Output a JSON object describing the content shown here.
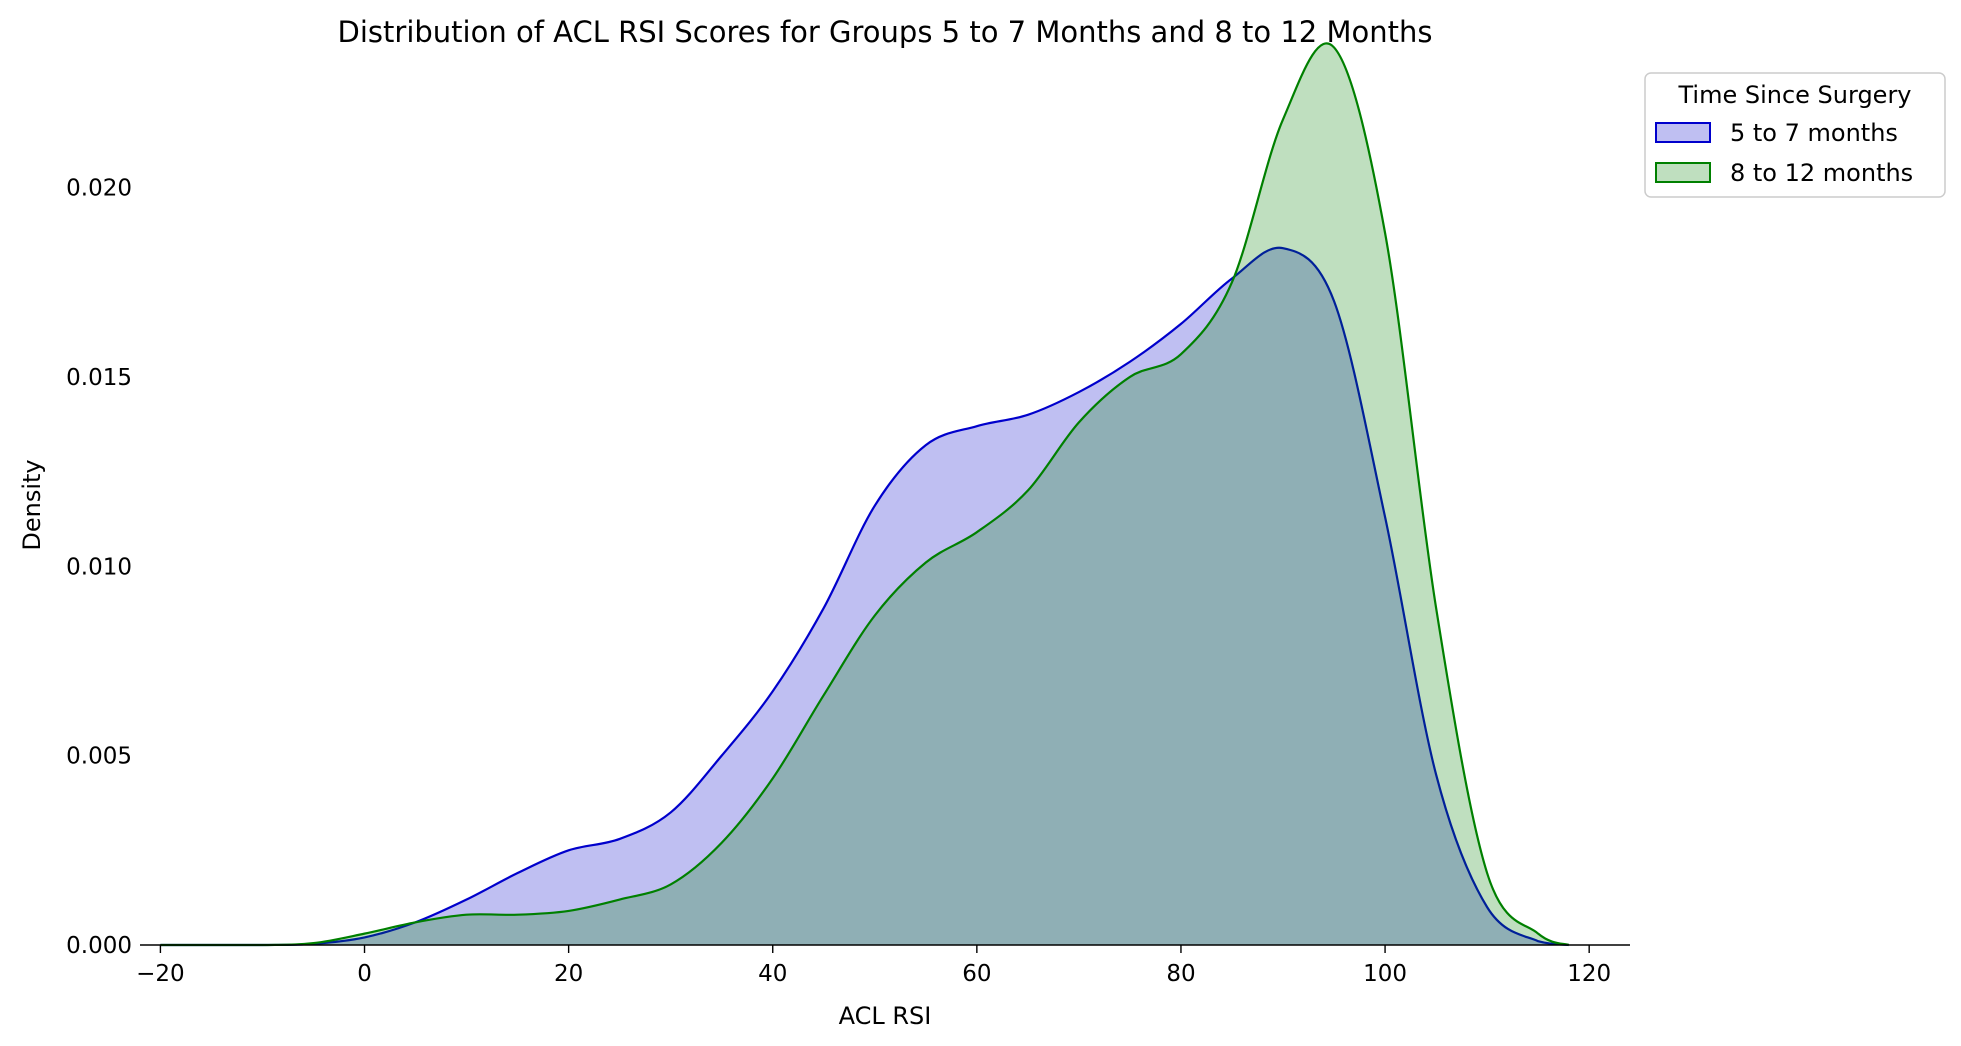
{
  "chart_data": {
    "type": "area",
    "title": "Distribution of ACL RSI Scores for Groups 5 to 7 Months and 8 to 12 Months",
    "xlabel": "ACL RSI",
    "ylabel": "Density",
    "xlim": [
      -22,
      124
    ],
    "ylim": [
      0,
      0.0235
    ],
    "xticks": [
      -20,
      0,
      20,
      40,
      60,
      80,
      100,
      120
    ],
    "xtick_labels": [
      "−20",
      "0",
      "20",
      "40",
      "60",
      "80",
      "100",
      "120"
    ],
    "yticks": [
      0,
      0.005,
      0.01,
      0.015,
      0.02
    ],
    "ytick_labels": [
      "0.000",
      "0.005",
      "0.010",
      "0.015",
      "0.020"
    ],
    "grid": false,
    "legend": {
      "title": "Time Since Surgery",
      "placement": "outside-top-right"
    },
    "series": [
      {
        "name": "5 to 7 months",
        "line_color": "#0000cc",
        "fill_color": "#bcbcfa",
        "x": [
          -20,
          -10,
          -5,
          0,
          5,
          10,
          15,
          20,
          25,
          30,
          35,
          40,
          45,
          50,
          55,
          60,
          65,
          70,
          75,
          80,
          85,
          90,
          95,
          100,
          105,
          110,
          115,
          118
        ],
        "y": [
          0,
          0,
          3e-05,
          0.0002,
          0.0006,
          0.0012,
          0.0019,
          0.0025,
          0.0028,
          0.0035,
          0.005,
          0.0067,
          0.0089,
          0.0116,
          0.0132,
          0.0137,
          0.014,
          0.0146,
          0.0154,
          0.0164,
          0.0176,
          0.0184,
          0.017,
          0.0113,
          0.0045,
          0.001,
          0.0001,
          0
        ]
      },
      {
        "name": "8 to 12 months",
        "line_color": "#008000",
        "fill_color": "#bfe0bf",
        "x": [
          -20,
          -10,
          -5,
          0,
          5,
          10,
          15,
          20,
          25,
          30,
          35,
          40,
          45,
          50,
          55,
          60,
          65,
          70,
          75,
          80,
          85,
          90,
          95,
          100,
          105,
          110,
          115,
          118
        ],
        "y": [
          0,
          0,
          5e-05,
          0.0003,
          0.0006,
          0.0008,
          0.0008,
          0.0009,
          0.0012,
          0.0016,
          0.0027,
          0.0044,
          0.0066,
          0.0087,
          0.0101,
          0.0109,
          0.012,
          0.0138,
          0.015,
          0.0156,
          0.0175,
          0.0218,
          0.0237,
          0.0188,
          0.0089,
          0.0019,
          0.0003,
          0
        ]
      }
    ]
  }
}
